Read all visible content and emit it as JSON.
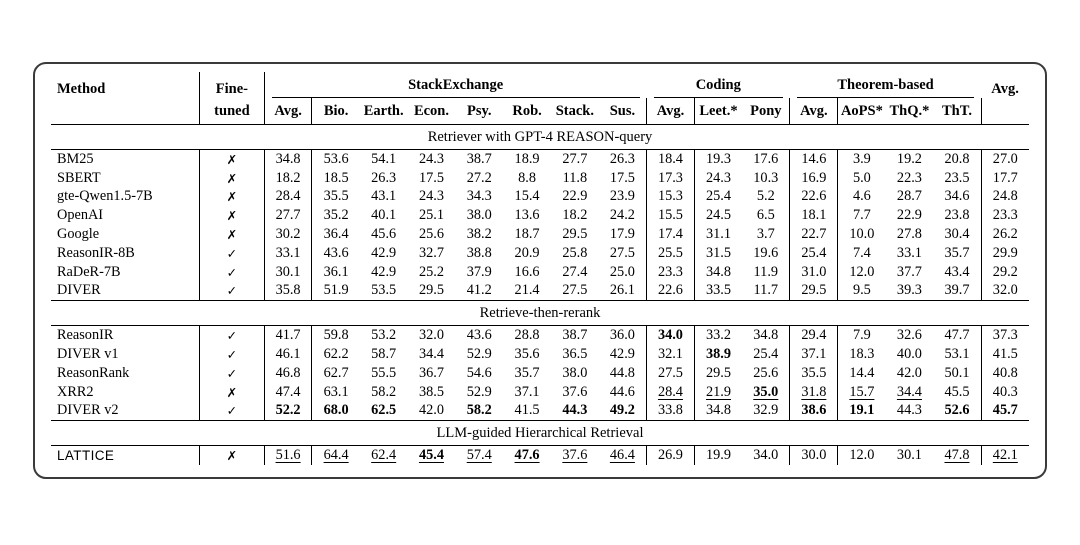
{
  "table": {
    "marks": {
      "checked": "✓",
      "cross": "✗"
    },
    "header": {
      "method": "Method",
      "fine_line1": "Fine-",
      "fine_line2": "tuned",
      "group_stackexchange": "StackExchange",
      "group_coding": "Coding",
      "group_theorem": "Theorem-based",
      "overall_avg": "Avg.",
      "sub": [
        "Avg.",
        "Bio.",
        "Earth.",
        "Econ.",
        "Psy.",
        "Rob.",
        "Stack.",
        "Sus.",
        "Avg.",
        "Leet.*",
        "Pony",
        "Avg.",
        "AoPS*",
        "ThQ.*",
        "ThT."
      ]
    },
    "columns_semantics": [
      "stackexchange_avg",
      "biology",
      "earth",
      "economics",
      "psychology",
      "robotics",
      "stackoverflow",
      "sustainable",
      "coding_avg",
      "leetcode",
      "pony",
      "theorem_avg",
      "aops",
      "theoremqa_q",
      "theoremqa_t",
      "overall_avg"
    ],
    "sections": [
      {
        "title": "Retriever with GPT-4 REASON-query",
        "rows": [
          {
            "method": "BM25",
            "finetuned": false,
            "cells": [
              "34.8",
              "53.6",
              "54.1",
              "24.3",
              "38.7",
              "18.9",
              "27.7",
              "26.3",
              "18.4",
              "19.3",
              "17.6",
              "14.6",
              "3.9",
              "19.2",
              "20.8",
              "27.0"
            ]
          },
          {
            "method": "SBERT",
            "finetuned": false,
            "cells": [
              "18.2",
              "18.5",
              "26.3",
              "17.5",
              "27.2",
              "8.8",
              "11.8",
              "17.5",
              "17.3",
              "24.3",
              "10.3",
              "16.9",
              "5.0",
              "22.3",
              "23.5",
              "17.7"
            ]
          },
          {
            "method": "gte-Qwen1.5-7B",
            "finetuned": false,
            "cells": [
              "28.4",
              "35.5",
              "43.1",
              "24.3",
              "34.3",
              "15.4",
              "22.9",
              "23.9",
              "15.3",
              "25.4",
              "5.2",
              "22.6",
              "4.6",
              "28.7",
              "34.6",
              "24.8"
            ]
          },
          {
            "method": "OpenAI",
            "finetuned": false,
            "cells": [
              "27.7",
              "35.2",
              "40.1",
              "25.1",
              "38.0",
              "13.6",
              "18.2",
              "24.2",
              "15.5",
              "24.5",
              "6.5",
              "18.1",
              "7.7",
              "22.9",
              "23.8",
              "23.3"
            ]
          },
          {
            "method": "Google",
            "finetuned": false,
            "cells": [
              "30.2",
              "36.4",
              "45.6",
              "25.6",
              "38.2",
              "18.7",
              "29.5",
              "17.9",
              "17.4",
              "31.1",
              "3.7",
              "22.7",
              "10.0",
              "27.8",
              "30.4",
              "26.2"
            ]
          },
          {
            "method": "ReasonIR-8B",
            "finetuned": true,
            "cells": [
              "33.1",
              "43.6",
              "42.9",
              "32.7",
              "38.8",
              "20.9",
              "25.8",
              "27.5",
              "25.5",
              "31.5",
              "19.6",
              "25.4",
              "7.4",
              "33.1",
              "35.7",
              "29.9"
            ]
          },
          {
            "method": "RaDeR-7B",
            "finetuned": true,
            "cells": [
              "30.1",
              "36.1",
              "42.9",
              "25.2",
              "37.9",
              "16.6",
              "27.4",
              "25.0",
              "23.3",
              "34.8",
              "11.9",
              "31.0",
              "12.0",
              "37.7",
              "43.4",
              "29.2"
            ]
          },
          {
            "method": "DIVER",
            "finetuned": true,
            "cells": [
              "35.8",
              "51.9",
              "53.5",
              "29.5",
              "41.2",
              "21.4",
              "27.5",
              "26.1",
              "22.6",
              "33.5",
              "11.7",
              "29.5",
              "9.5",
              "39.3",
              "39.7",
              "32.0"
            ]
          }
        ]
      },
      {
        "title": "Retrieve-then-rerank",
        "rows": [
          {
            "method": "ReasonIR",
            "finetuned": true,
            "cells": [
              "41.7",
              "59.8",
              "53.2",
              "32.0",
              "43.6",
              "28.8",
              "38.7",
              "36.0",
              "34.0",
              "33.2",
              "34.8",
              "29.4",
              "7.9",
              "32.6",
              "47.7",
              "37.3"
            ],
            "bold": [
              8
            ]
          },
          {
            "method": "DIVER v1",
            "finetuned": true,
            "cells": [
              "46.1",
              "62.2",
              "58.7",
              "34.4",
              "52.9",
              "35.6",
              "36.5",
              "42.9",
              "32.1",
              "38.9",
              "25.4",
              "37.1",
              "18.3",
              "40.0",
              "53.1",
              "41.5"
            ],
            "bold": [
              9
            ]
          },
          {
            "method": "ReasonRank",
            "finetuned": true,
            "cells": [
              "46.8",
              "62.7",
              "55.5",
              "36.7",
              "54.6",
              "35.7",
              "38.0",
              "44.8",
              "27.5",
              "29.5",
              "25.6",
              "35.5",
              "14.4",
              "42.0",
              "50.1",
              "40.8"
            ]
          },
          {
            "method": "XRR2",
            "finetuned": false,
            "cells": [
              "47.4",
              "63.1",
              "58.2",
              "38.5",
              "52.9",
              "37.1",
              "37.6",
              "44.6",
              "28.4",
              "21.9",
              "35.0",
              "31.8",
              "15.7",
              "34.4",
              "45.5",
              "40.3"
            ],
            "bold": [
              10
            ],
            "underline": [
              8,
              9,
              10,
              11,
              12,
              13
            ]
          },
          {
            "method": "DIVER v2",
            "finetuned": true,
            "cells": [
              "52.2",
              "68.0",
              "62.5",
              "42.0",
              "58.2",
              "41.5",
              "44.3",
              "49.2",
              "33.8",
              "34.8",
              "32.9",
              "38.6",
              "19.1",
              "44.3",
              "52.6",
              "45.7"
            ],
            "bold": [
              0,
              1,
              2,
              4,
              6,
              7,
              11,
              12,
              14,
              15
            ]
          }
        ]
      },
      {
        "title": "LLM-guided Hierarchical Retrieval",
        "rows": [
          {
            "method": "LATTICE",
            "finetuned": false,
            "sans": true,
            "cells": [
              "51.6",
              "64.4",
              "62.4",
              "45.4",
              "57.4",
              "47.6",
              "37.6",
              "46.4",
              "26.9",
              "19.9",
              "34.0",
              "30.0",
              "12.0",
              "30.1",
              "47.8",
              "42.1"
            ],
            "bold": [
              3,
              5
            ],
            "underline": [
              0,
              1,
              2,
              3,
              4,
              5,
              6,
              7,
              14,
              15
            ]
          }
        ]
      }
    ]
  }
}
